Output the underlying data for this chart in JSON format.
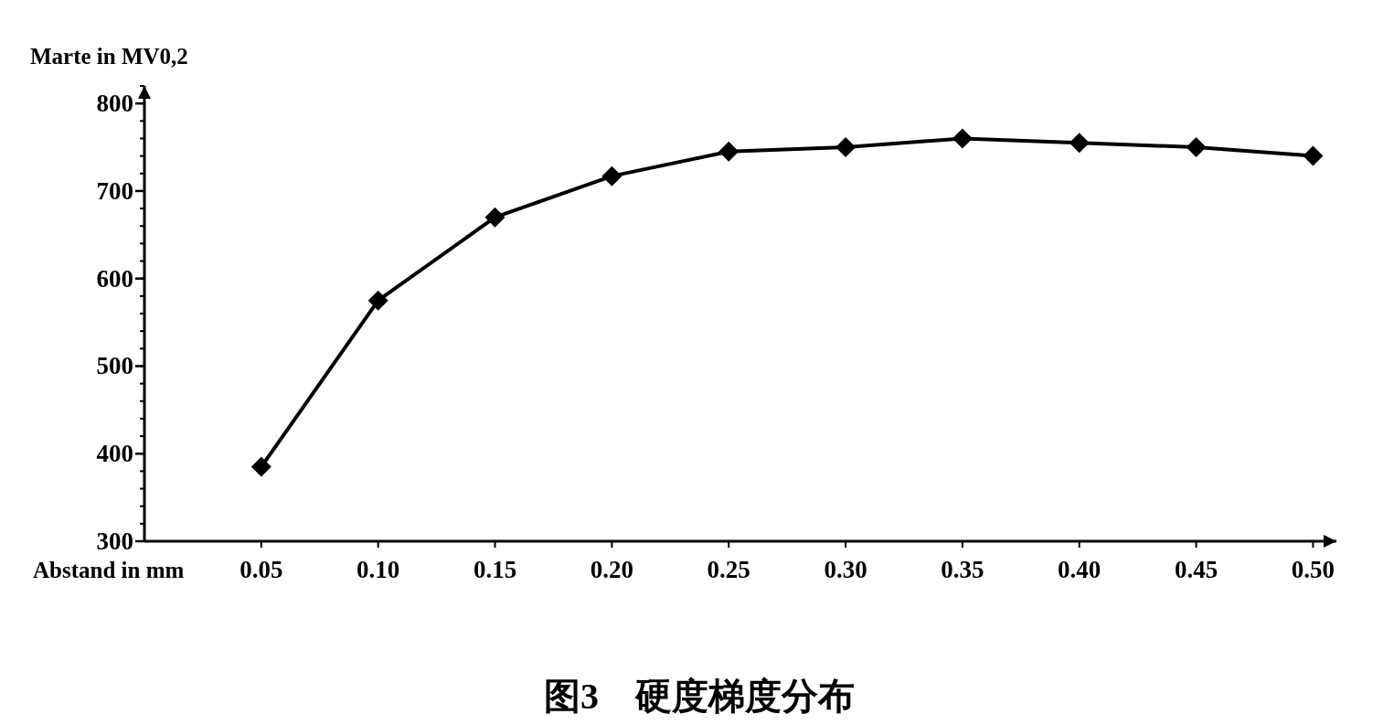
{
  "chart_data": {
    "type": "line",
    "title": "图3　硬度梯度分布",
    "xlabel": "Abstand in mm",
    "ylabel": "Marte in MV0,2",
    "x": [
      0.05,
      0.1,
      0.15,
      0.2,
      0.25,
      0.3,
      0.35,
      0.4,
      0.45,
      0.5
    ],
    "series": [
      {
        "color": "#000000",
        "values": [
          385,
          575,
          670,
          717,
          745,
          750,
          760,
          755,
          750,
          740
        ]
      }
    ],
    "marker": "diamond",
    "line_style": "solid",
    "xlim": [
      0,
      0.51
    ],
    "ylim": [
      300,
      820
    ],
    "xticks": [
      {
        "value": 0.05,
        "label": "0.05"
      },
      {
        "value": 0.1,
        "label": "0.10"
      },
      {
        "value": 0.15,
        "label": "0.15"
      },
      {
        "value": 0.2,
        "label": "0.20"
      },
      {
        "value": 0.25,
        "label": "0.25"
      },
      {
        "value": 0.3,
        "label": "0.30"
      },
      {
        "value": 0.35,
        "label": "0.35"
      },
      {
        "value": 0.4,
        "label": "0.40"
      },
      {
        "value": 0.45,
        "label": "0.45"
      },
      {
        "value": 0.5,
        "label": "0.50"
      }
    ],
    "yticks": [
      300,
      400,
      500,
      600,
      700,
      800
    ]
  }
}
